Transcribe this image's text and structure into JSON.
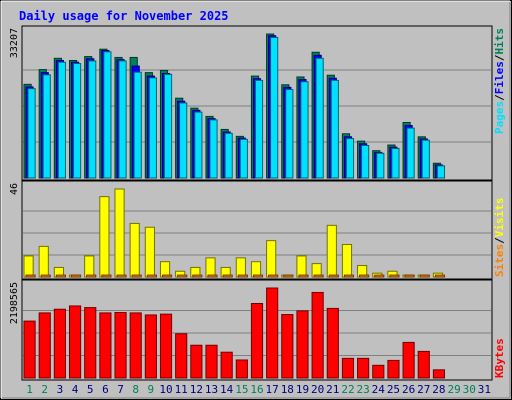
{
  "chart_data": {
    "title": "Daily usage for November 2025",
    "type": "bar",
    "days": [
      "1",
      "2",
      "3",
      "4",
      "5",
      "6",
      "7",
      "8",
      "9",
      "10",
      "11",
      "12",
      "13",
      "14",
      "15",
      "16",
      "17",
      "18",
      "19",
      "20",
      "21",
      "22",
      "23",
      "24",
      "25",
      "26",
      "27",
      "28",
      "29",
      "30",
      "31"
    ],
    "weekend_days": [
      "1",
      "2",
      "8",
      "9",
      "15",
      "16",
      "22",
      "23",
      "29",
      "30"
    ],
    "panels": [
      {
        "id": "hits-files-pages",
        "max_label": "33207",
        "ylim": [
          0,
          33207
        ],
        "series": [
          {
            "name": "Hits",
            "color": "#00805c",
            "values": [
              21600,
              25000,
              27600,
              27100,
              28000,
              29700,
              27800,
              27800,
              24300,
              24800,
              18400,
              16100,
              14200,
              11200,
              9600,
              23500,
              33200,
              21500,
              23300,
              29000,
              23700,
              10200,
              8500,
              6300,
              7600,
              12800,
              9500,
              3400,
              0,
              0,
              0
            ]
          },
          {
            "name": "Files",
            "color": "#0000ff",
            "values": [
              21000,
              24300,
              27100,
              26700,
              27500,
              29400,
              27300,
              25800,
              23500,
              24100,
              17700,
              15600,
              13700,
              10600,
              9200,
              22900,
              32800,
              20900,
              22700,
              28300,
              23000,
              9500,
              7900,
              5900,
              7100,
              12100,
              9000,
              3000,
              0,
              0,
              0
            ]
          },
          {
            "name": "Pages",
            "color": "#00e0ff",
            "values": [
              20600,
              23800,
              26700,
              26400,
              27000,
              29100,
              27000,
              24400,
              23100,
              23900,
              17300,
              15200,
              13400,
              10300,
              8900,
              22500,
              32400,
              20400,
              22200,
              27600,
              22500,
              9100,
              7500,
              5700,
              6800,
              11500,
              8700,
              2800,
              0,
              0,
              0
            ]
          }
        ]
      },
      {
        "id": "visits-sites",
        "max_label": "46",
        "ylim": [
          0,
          46
        ],
        "series": [
          {
            "name": "Visits",
            "color": "#ffff00",
            "values": [
              11,
              16,
              5,
              1,
              11,
              42,
              46,
              28,
              26,
              8,
              3,
              5,
              10,
              5,
              10,
              8,
              19,
              1,
              11,
              7,
              27,
              17,
              6,
              2,
              3,
              1,
              1,
              2,
              0,
              0,
              0
            ]
          },
          {
            "name": "Sites",
            "color": "#ff8000",
            "values": [
              1,
              1,
              1,
              1,
              1,
              1,
              1,
              1,
              1,
              1,
              1,
              1,
              1,
              1,
              1,
              1,
              1,
              1,
              1,
              1,
              1,
              1,
              1,
              1,
              1,
              1,
              1,
              1,
              0,
              0,
              0
            ]
          }
        ]
      },
      {
        "id": "kbytes",
        "max_label": "2198565",
        "ylim": [
          0,
          2198565
        ],
        "series": [
          {
            "name": "KBytes",
            "color": "#ff0000",
            "values": [
              1390000,
              1590000,
              1680000,
              1760000,
              1720000,
              1590000,
              1600000,
              1590000,
              1540000,
              1560000,
              1080000,
              800000,
              800000,
              630000,
              440000,
              1820000,
              2198000,
              1550000,
              1640000,
              2090000,
              1700000,
              480000,
              480000,
              310000,
              430000,
              870000,
              650000,
              200000,
              0,
              0,
              0
            ]
          }
        ]
      }
    ],
    "legends": [
      {
        "panel": "hits-files-pages",
        "items": [
          {
            "text": "Pages",
            "color": "#00e0ff"
          },
          {
            "text": "/",
            "color": "#000000"
          },
          {
            "text": "Files",
            "color": "#0000ff"
          },
          {
            "text": "/",
            "color": "#000000"
          },
          {
            "text": "Hits",
            "color": "#00805c"
          }
        ]
      },
      {
        "panel": "visits-sites",
        "items": [
          {
            "text": "Sites",
            "color": "#ff8000"
          },
          {
            "text": "/",
            "color": "#000000"
          },
          {
            "text": "Visits",
            "color": "#ffff00"
          }
        ]
      },
      {
        "panel": "kbytes",
        "items": [
          {
            "text": "KBytes",
            "color": "#ff0000"
          }
        ]
      }
    ],
    "title_color": "#0000ff",
    "weekday_label_color": "#000080",
    "weekend_label_color": "#00805c",
    "plot_background": "#c0c0c0",
    "grid": true
  }
}
